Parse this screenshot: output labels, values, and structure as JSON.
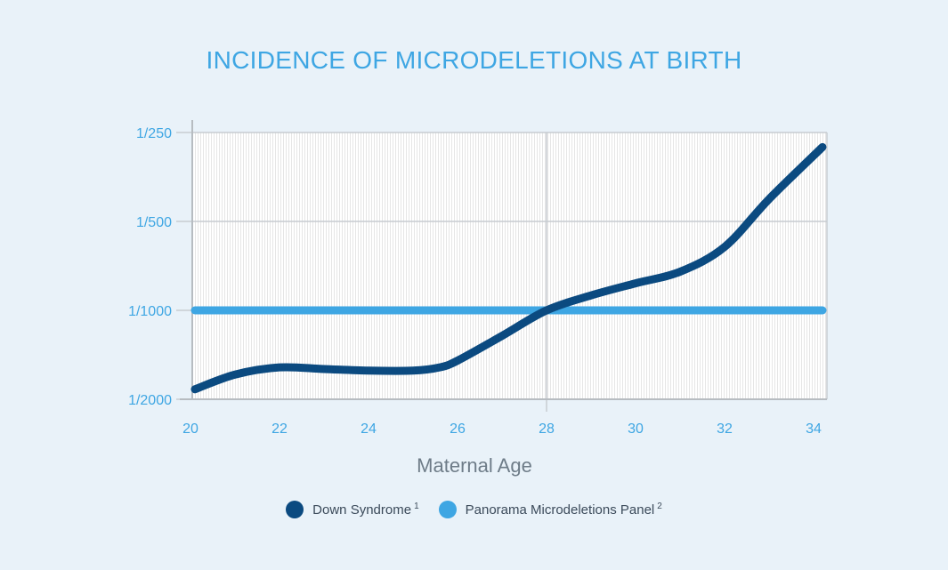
{
  "chart_data": {
    "type": "line",
    "title": "INCIDENCE OF MICRODELETIONS AT BIRTH",
    "xlabel": "Maternal Age",
    "ylabel": "",
    "x_ticks": [
      "20",
      "22",
      "24",
      "26",
      "28",
      "30",
      "32",
      "34"
    ],
    "xlim": [
      20,
      34.3
    ],
    "y_scale": "log2",
    "y_ticks": [
      "1/250",
      "1/500",
      "1/1000",
      "1/2000"
    ],
    "y_tick_denominators": [
      250,
      500,
      1000,
      2000
    ],
    "ylim_denominators": [
      2000,
      250
    ],
    "grid": true,
    "legend_position": "bottom",
    "series": [
      {
        "name": "Down Syndrome",
        "superscript": "1",
        "color": "#0b4a80",
        "x": [
          20.1,
          21,
          22,
          23,
          24,
          25,
          25.6,
          26,
          27,
          28,
          29,
          30,
          31,
          32,
          33,
          34.2
        ],
        "y_denominators": [
          1850,
          1650,
          1560,
          1580,
          1600,
          1600,
          1560,
          1480,
          1220,
          1000,
          890,
          810,
          740,
          610,
          420,
          280
        ]
      },
      {
        "name": "Panorama Microdeletions Panel",
        "superscript": "2",
        "color": "#3ea6e3",
        "x": [
          20.1,
          34.2
        ],
        "y_denominators": [
          1000,
          1000
        ]
      }
    ]
  }
}
